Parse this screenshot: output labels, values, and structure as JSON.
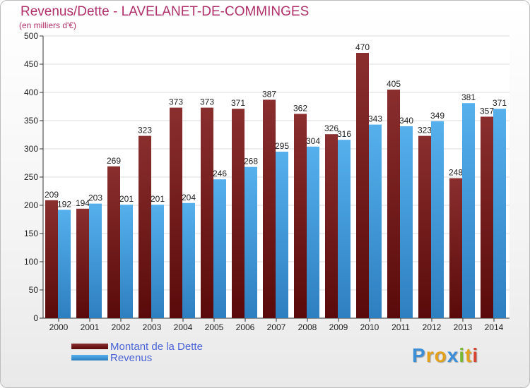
{
  "chart_data": {
    "type": "bar",
    "title": "Revenus/Dette - LAVELANET-DE-COMMINGES",
    "subtitle": "(en milliers d'€)",
    "categories": [
      "2000",
      "2001",
      "2002",
      "2003",
      "2004",
      "2005",
      "2006",
      "2007",
      "2008",
      "2009",
      "2010",
      "2011",
      "2012",
      "2013",
      "2014"
    ],
    "series": [
      {
        "name": "Montant de la Dette",
        "color": "#7a2323",
        "values": [
          209,
          194,
          269,
          323,
          373,
          373,
          371,
          387,
          362,
          326,
          470,
          405,
          323,
          248,
          357
        ]
      },
      {
        "name": "Revenus",
        "color": "#4aa3e0",
        "values": [
          192,
          203,
          201,
          201,
          204,
          246,
          268,
          295,
          304,
          316,
          343,
          340,
          349,
          381,
          371
        ]
      }
    ],
    "ylim": [
      0,
      500
    ],
    "yticks": [
      0,
      50,
      100,
      150,
      200,
      250,
      300,
      350,
      400,
      450,
      500
    ],
    "grid": true,
    "legend": "bottom-left"
  },
  "logo": {
    "letters": [
      "P",
      "r",
      "o",
      "x",
      "i",
      "t",
      "i"
    ],
    "colors": [
      "#3a8fd8",
      "#e4a21c",
      "#e4a21c",
      "#3a8fd8",
      "#7ab833",
      "#e4a21c",
      "#d8442f"
    ]
  }
}
